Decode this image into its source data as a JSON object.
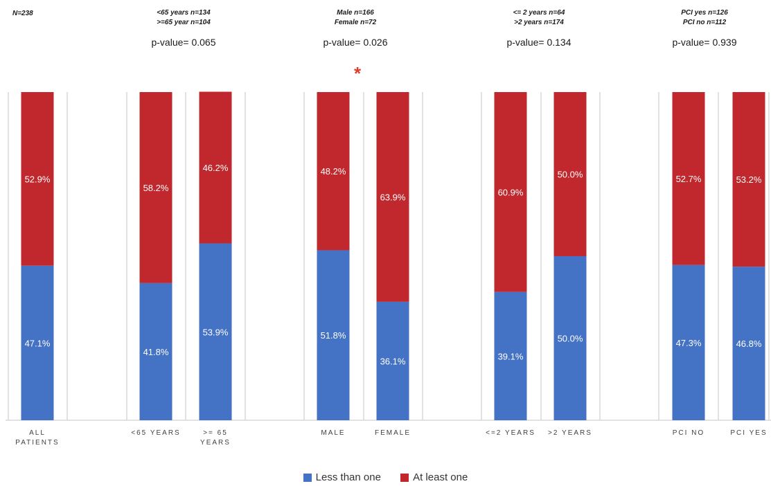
{
  "chart_data": {
    "type": "bar",
    "stacked": true,
    "percent_scale": true,
    "ylim": [
      0,
      100
    ],
    "categories": [
      "ALL PATIENTS",
      "<65 YEARS",
      ">= 65 YEARS",
      "MALE",
      "FEMALE",
      "<=2 YEARS",
      ">2 YEARS",
      "PCI NO",
      "PCI YES"
    ],
    "series": [
      {
        "name": "Less than one",
        "color": "#4472c4",
        "values": [
          47.1,
          41.8,
          53.9,
          51.8,
          36.1,
          39.1,
          50.0,
          47.3,
          46.8
        ],
        "labels": [
          "47.1%",
          "41.8%",
          "53.9%",
          "51.8%",
          "36.1%",
          "39.1%",
          "50.0%",
          "47.3%",
          "46.8%"
        ]
      },
      {
        "name": "At least one",
        "color": "#c0282d",
        "values": [
          52.9,
          58.2,
          46.2,
          48.2,
          63.9,
          60.9,
          50.0,
          52.7,
          53.2
        ],
        "labels": [
          "52.9%",
          "58.2%",
          "46.2%",
          "48.2%",
          "63.9%",
          "60.9%",
          "50.0%",
          "52.7%",
          "53.2%"
        ]
      }
    ],
    "annotations": {
      "total": "N=238",
      "groups": [
        {
          "lines": [
            "<65 years n=134",
            ">=65 year n=104"
          ],
          "pvalue": "p-value= 0.065",
          "significant": false
        },
        {
          "lines": [
            "Male n=166",
            "Female n=72"
          ],
          "pvalue": "p-value= 0.026",
          "significant": true
        },
        {
          "lines": [
            "<= 2 years n=64",
            ">2 years n=174"
          ],
          "pvalue": "p-value= 0.134",
          "significant": false
        },
        {
          "lines": [
            "PCI yes n=126",
            "PCI no n=112"
          ],
          "pvalue": "p-value= 0.939",
          "significant": false
        }
      ],
      "significance_marker": "*"
    },
    "legend": {
      "placement": "bottom",
      "items": [
        "Less than one",
        "At least one"
      ]
    },
    "grid": true
  }
}
